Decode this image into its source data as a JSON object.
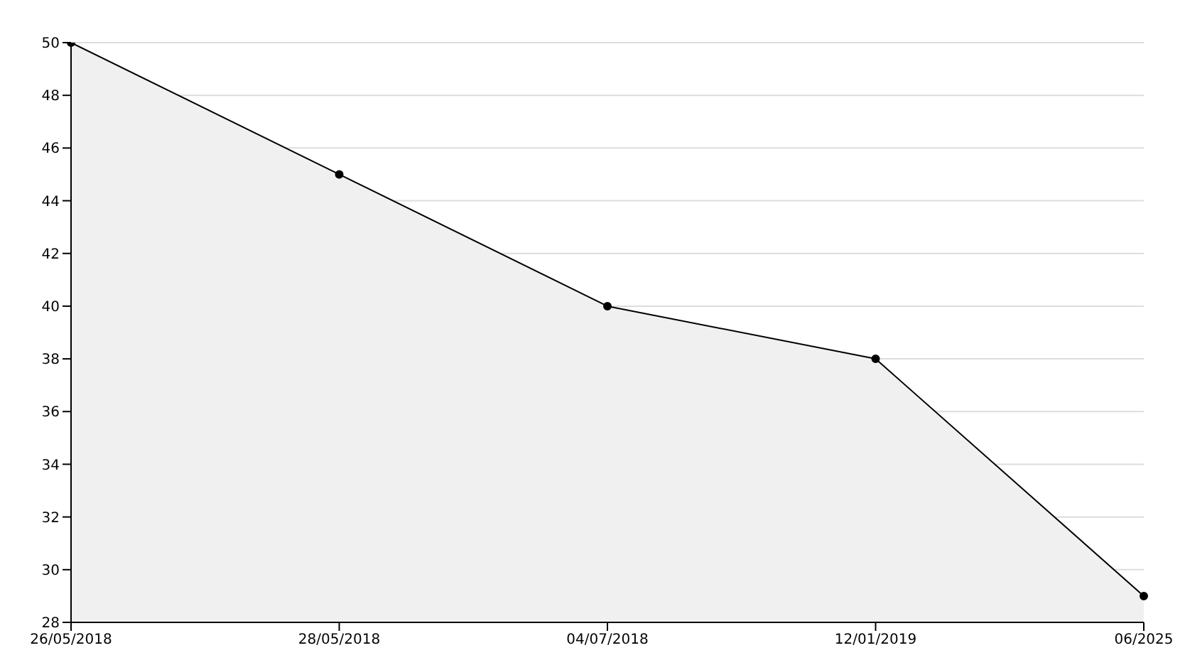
{
  "chart_data": {
    "type": "area",
    "categories": [
      "26/05/2018",
      "28/05/2018",
      "04/07/2018",
      "12/01/2019",
      "06/2025"
    ],
    "values": [
      50,
      45,
      40,
      38,
      29
    ],
    "color": "#000000",
    "ylim": [
      28,
      50
    ],
    "yticks": [
      28,
      30,
      32,
      34,
      36,
      38,
      40,
      42,
      44,
      46,
      48,
      50
    ],
    "grid": "y",
    "marker": "circle",
    "line_style": "solid"
  }
}
